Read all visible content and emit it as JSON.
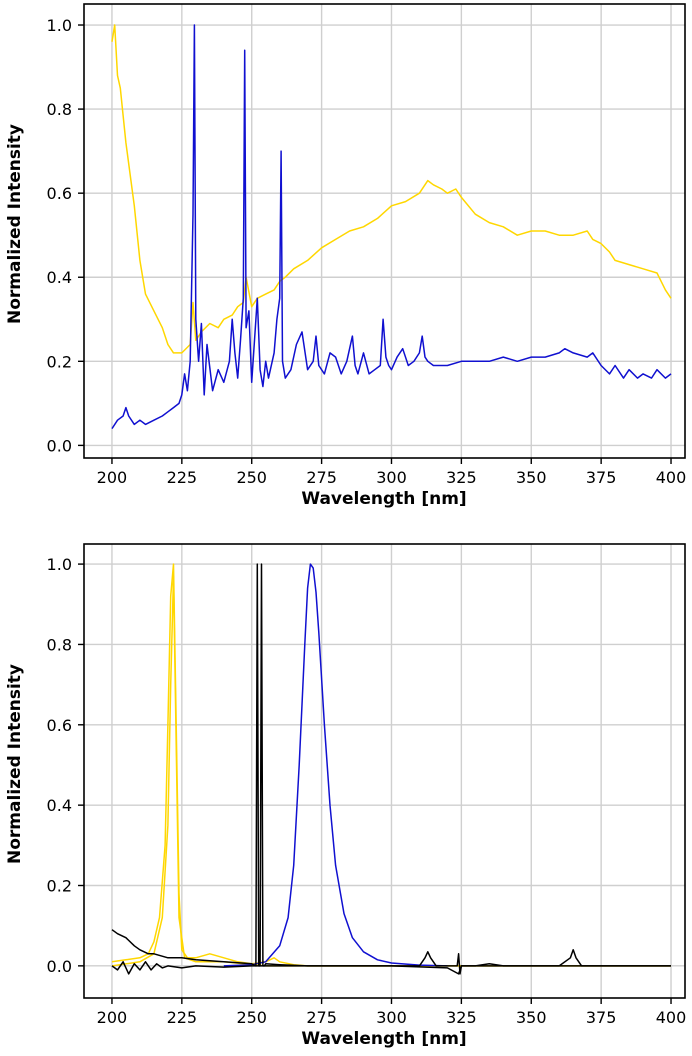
{
  "chart_data": [
    {
      "type": "line",
      "xlabel": "Wavelength [nm]",
      "ylabel": "Normalized Intensity",
      "xlim": [
        190,
        405
      ],
      "ylim": [
        -0.03,
        1.05
      ],
      "xticks": [
        "200",
        "225",
        "250",
        "275",
        "300",
        "325",
        "350",
        "375",
        "400"
      ],
      "yticks": [
        "0.0",
        "0.2",
        "0.4",
        "0.6",
        "0.8",
        "1.0"
      ],
      "grid": true,
      "series": [
        {
          "color": "#ffd700",
          "x": [
            200,
            201,
            202,
            203,
            205,
            208,
            210,
            212,
            215,
            218,
            220,
            222,
            225,
            228,
            229,
            230,
            232,
            235,
            238,
            240,
            243,
            245,
            247,
            248,
            250,
            252,
            255,
            258,
            260,
            262,
            265,
            270,
            275,
            280,
            285,
            290,
            295,
            300,
            305,
            310,
            313,
            315,
            318,
            320,
            323,
            325,
            330,
            335,
            340,
            345,
            350,
            355,
            360,
            365,
            370,
            372,
            375,
            378,
            380,
            385,
            390,
            395,
            398,
            400
          ],
          "y": [
            0.96,
            1.0,
            0.88,
            0.85,
            0.72,
            0.57,
            0.44,
            0.36,
            0.32,
            0.28,
            0.24,
            0.22,
            0.22,
            0.24,
            0.34,
            0.25,
            0.27,
            0.29,
            0.28,
            0.3,
            0.31,
            0.33,
            0.34,
            0.4,
            0.33,
            0.35,
            0.36,
            0.37,
            0.39,
            0.4,
            0.42,
            0.44,
            0.47,
            0.49,
            0.51,
            0.52,
            0.54,
            0.57,
            0.58,
            0.6,
            0.63,
            0.62,
            0.61,
            0.6,
            0.61,
            0.59,
            0.55,
            0.53,
            0.52,
            0.5,
            0.51,
            0.51,
            0.5,
            0.5,
            0.51,
            0.49,
            0.48,
            0.46,
            0.44,
            0.43,
            0.42,
            0.41,
            0.37,
            0.35
          ]
        },
        {
          "color": "#1010d0",
          "x": [
            200,
            202,
            204,
            205,
            206,
            208,
            210,
            212,
            215,
            218,
            220,
            222,
            224,
            225,
            226,
            227,
            228,
            229,
            229.5,
            230,
            231,
            232,
            233,
            234,
            236,
            238,
            240,
            242,
            243,
            244,
            245,
            246,
            247,
            247.5,
            248,
            249,
            250,
            251,
            252,
            253,
            254,
            255,
            256,
            258,
            259,
            260,
            260.5,
            261,
            262,
            264,
            266,
            268,
            270,
            272,
            273,
            274,
            276,
            278,
            280,
            282,
            284,
            286,
            287,
            288,
            290,
            292,
            294,
            296,
            297,
            298,
            299,
            300,
            302,
            304,
            306,
            308,
            310,
            311,
            312,
            313,
            315,
            320,
            325,
            330,
            335,
            340,
            345,
            350,
            355,
            360,
            362,
            365,
            370,
            372,
            375,
            378,
            380,
            383,
            385,
            388,
            390,
            393,
            395,
            398,
            400
          ],
          "y": [
            0.04,
            0.06,
            0.07,
            0.09,
            0.07,
            0.05,
            0.06,
            0.05,
            0.06,
            0.07,
            0.08,
            0.09,
            0.1,
            0.12,
            0.17,
            0.13,
            0.2,
            0.55,
            1.0,
            0.3,
            0.2,
            0.29,
            0.12,
            0.24,
            0.13,
            0.18,
            0.15,
            0.2,
            0.3,
            0.22,
            0.16,
            0.25,
            0.35,
            0.94,
            0.28,
            0.32,
            0.15,
            0.25,
            0.35,
            0.18,
            0.14,
            0.2,
            0.16,
            0.22,
            0.3,
            0.35,
            0.7,
            0.2,
            0.16,
            0.18,
            0.24,
            0.27,
            0.18,
            0.2,
            0.26,
            0.19,
            0.17,
            0.22,
            0.21,
            0.17,
            0.2,
            0.26,
            0.19,
            0.17,
            0.22,
            0.17,
            0.18,
            0.19,
            0.3,
            0.21,
            0.19,
            0.18,
            0.21,
            0.23,
            0.19,
            0.2,
            0.22,
            0.26,
            0.21,
            0.2,
            0.19,
            0.19,
            0.2,
            0.2,
            0.2,
            0.21,
            0.2,
            0.21,
            0.21,
            0.22,
            0.23,
            0.22,
            0.21,
            0.22,
            0.19,
            0.17,
            0.19,
            0.16,
            0.18,
            0.16,
            0.17,
            0.16,
            0.18,
            0.16,
            0.17
          ]
        }
      ]
    },
    {
      "type": "line",
      "xlabel": "Wavelength [nm]",
      "ylabel": "Normalized Intensity",
      "xlim": [
        190,
        405
      ],
      "ylim": [
        -0.08,
        1.05
      ],
      "xticks": [
        "200",
        "225",
        "250",
        "275",
        "300",
        "325",
        "350",
        "375",
        "400"
      ],
      "yticks": [
        "0.0",
        "0.2",
        "0.4",
        "0.6",
        "0.8",
        "1.0"
      ],
      "grid": true,
      "series": [
        {
          "color": "#ffd700",
          "x": [
            200,
            205,
            210,
            213,
            215,
            217,
            219,
            220,
            221,
            222,
            223,
            224,
            225,
            227,
            230,
            235,
            240,
            245,
            250,
            255,
            258,
            260,
            265,
            270,
            400
          ],
          "y": [
            0.01,
            0.015,
            0.02,
            0.03,
            0.06,
            0.12,
            0.3,
            0.6,
            0.92,
            1.0,
            0.6,
            0.18,
            0.04,
            0.02,
            0.02,
            0.03,
            0.02,
            0.01,
            0.005,
            0.01,
            0.02,
            0.01,
            0.003,
            0.0,
            0.0
          ]
        },
        {
          "color": "#ffd700",
          "x": [
            200,
            210,
            215,
            218,
            220,
            221,
            222,
            223,
            224,
            226,
            230,
            240,
            255,
            400
          ],
          "y": [
            0.0,
            0.01,
            0.03,
            0.12,
            0.35,
            0.7,
            0.97,
            0.55,
            0.12,
            0.02,
            0.01,
            0.01,
            0.0,
            0.0
          ]
        },
        {
          "color": "#1010d0",
          "x": [
            240,
            250,
            255,
            260,
            263,
            265,
            267,
            269,
            270,
            271,
            272,
            273,
            274,
            276,
            278,
            280,
            283,
            286,
            290,
            295,
            300,
            310,
            320
          ],
          "y": [
            0.0,
            0.003,
            0.01,
            0.05,
            0.12,
            0.25,
            0.5,
            0.8,
            0.94,
            1.0,
            0.99,
            0.93,
            0.83,
            0.6,
            0.4,
            0.25,
            0.13,
            0.07,
            0.035,
            0.015,
            0.007,
            0.002,
            0.0
          ]
        },
        {
          "color": "#000000",
          "x": [
            200,
            202,
            205,
            208,
            210,
            213,
            215,
            220,
            225,
            230,
            240,
            250,
            251.5,
            252,
            252.5,
            253,
            253.5,
            254,
            254.5,
            255,
            260,
            270,
            280,
            290,
            300,
            310,
            312,
            313,
            314,
            316,
            320,
            323.5,
            324,
            324.5,
            325,
            330,
            335,
            340,
            350,
            360,
            364,
            365,
            366,
            368,
            370,
            380,
            390,
            400
          ],
          "y": [
            0.09,
            0.08,
            0.07,
            0.05,
            0.04,
            0.03,
            0.03,
            0.02,
            0.02,
            0.015,
            0.01,
            0.005,
            0.0,
            1.0,
            0.0,
            0.0,
            1.0,
            0.0,
            0.0,
            0.005,
            0.003,
            0.0,
            0.0,
            0.0,
            0.0,
            0.0,
            0.02,
            0.035,
            0.02,
            0.0,
            0.0,
            0.0,
            0.03,
            -0.02,
            0.0,
            0.0,
            0.005,
            0.0,
            0.0,
            0.0,
            0.02,
            0.04,
            0.02,
            0.0,
            0.0,
            0.0,
            0.0,
            0.0
          ]
        },
        {
          "color": "#000000",
          "x": [
            200,
            202,
            204,
            206,
            208,
            210,
            212,
            214,
            216,
            218,
            220,
            225,
            230,
            240,
            250,
            260,
            280,
            300,
            320,
            324,
            325,
            350,
            400
          ],
          "y": [
            0.0,
            -0.01,
            0.01,
            -0.02,
            0.005,
            -0.01,
            0.01,
            -0.01,
            0.005,
            -0.005,
            0.0,
            -0.005,
            0.0,
            -0.003,
            0.0,
            0.0,
            0.0,
            0.0,
            -0.005,
            -0.02,
            0.0,
            0.0,
            0.0
          ]
        }
      ]
    }
  ]
}
